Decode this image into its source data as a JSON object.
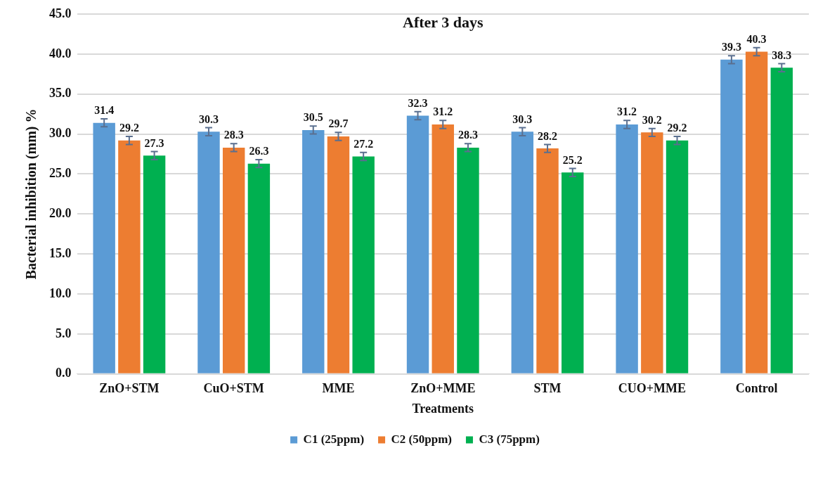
{
  "chart_data": {
    "type": "bar",
    "title": "After 3 days",
    "xlabel": "Treatments",
    "ylabel": "Bacterial inhibition (mm) %",
    "categories": [
      "ZnO+STM",
      "CuO+STM",
      "MME",
      "ZnO+MME",
      "STM",
      "CUO+MME",
      "Control"
    ],
    "series": [
      {
        "name": "C1 (25ppm)",
        "color": "#5b9bd5",
        "values": [
          31.4,
          30.3,
          30.5,
          32.3,
          30.3,
          31.2,
          39.3
        ],
        "errors": [
          0.5,
          0.5,
          0.5,
          0.5,
          0.5,
          0.5,
          0.5
        ]
      },
      {
        "name": "C2 (50ppm)",
        "color": "#ed7d31",
        "values": [
          29.2,
          28.3,
          29.7,
          31.2,
          28.2,
          30.2,
          40.3
        ],
        "errors": [
          0.5,
          0.5,
          0.5,
          0.5,
          0.5,
          0.5,
          0.5
        ]
      },
      {
        "name": "C3 (75ppm)",
        "color": "#00b050",
        "values": [
          27.3,
          26.3,
          27.2,
          28.3,
          25.2,
          29.2,
          38.3
        ],
        "errors": [
          0.5,
          0.5,
          0.5,
          0.5,
          0.5,
          0.5,
          0.5
        ]
      }
    ],
    "ylim": [
      0,
      45
    ],
    "yticks": [
      {
        "value": 0,
        "label": "0.0"
      },
      {
        "value": 5,
        "label": "5.0"
      },
      {
        "value": 10,
        "label": "10.0"
      },
      {
        "value": 15,
        "label": "15.0"
      },
      {
        "value": 20,
        "label": "20.0"
      },
      {
        "value": 25,
        "label": "25.0"
      },
      {
        "value": 30,
        "label": "30.0"
      },
      {
        "value": 35,
        "label": "35.0"
      },
      {
        "value": 40,
        "label": "40.0"
      },
      {
        "value": 45,
        "label": "45.0"
      }
    ],
    "grid": "y",
    "legend": "bottom",
    "data_labels": true
  }
}
